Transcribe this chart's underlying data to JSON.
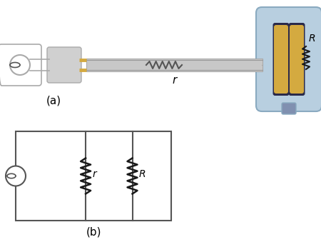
{
  "fig_width": 4.5,
  "fig_height": 3.39,
  "dpi": 100,
  "bg_color": "#ffffff",
  "part_a_label": "(a)",
  "part_b_label": "(b)",
  "label_r_upper": "R",
  "label_r_lower": "r",
  "label_r_circuit": "r",
  "label_R_circuit": "R",
  "outlet_color": "#e8e8e8",
  "outlet_edge": "#aaaaaa",
  "plug_color": "#d0d0d0",
  "plug_edge": "#aaaaaa",
  "prong_color": "#d4aa40",
  "cable_color": "#c8c8c8",
  "cable_edge": "#aaaaaa",
  "toaster_body_color": "#b8cfe0",
  "toaster_body_edge": "#8aaac0",
  "toaster_slot_color": "#d4aa40",
  "toaster_slot_dark": "#2a2a4a",
  "toaster_bottom_color": "#8090b0",
  "resistor_color": "#1a1a1a",
  "circuit_line_color": "#555555",
  "source_color": "#555555",
  "text_color": "#000000",
  "worn_color": "#555555"
}
